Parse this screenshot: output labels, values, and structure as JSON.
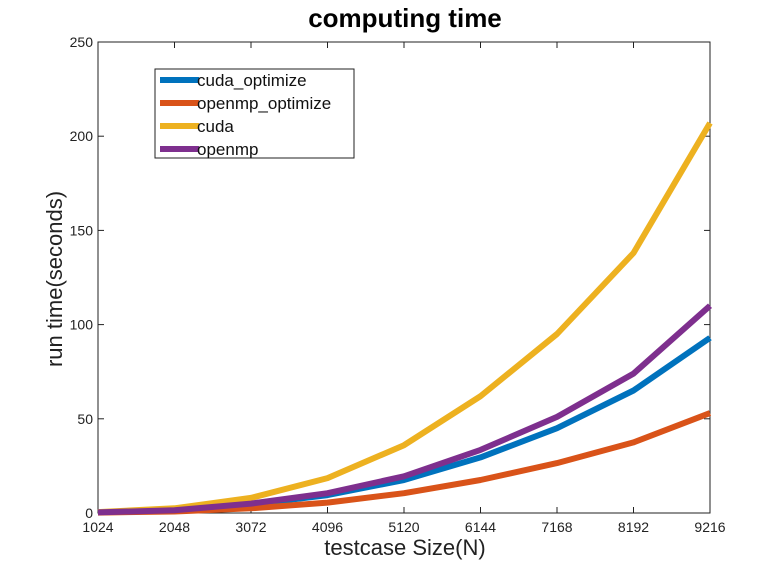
{
  "chart_data": {
    "type": "line",
    "title": "computing time",
    "xlabel": "testcase Size(N)",
    "ylabel": "run time(seconds)",
    "x": [
      1024,
      2048,
      3072,
      4096,
      5120,
      6144,
      7168,
      8192,
      9216
    ],
    "xlim": [
      1024,
      9216
    ],
    "ylim": [
      0,
      250
    ],
    "yticks": [
      0,
      50,
      100,
      150,
      200,
      250
    ],
    "grid": false,
    "legend_position": "top-left",
    "series": [
      {
        "name": "cuda_optimize",
        "color": "#0072BD",
        "values": [
          0.3,
          1.5,
          4.5,
          9.5,
          17.5,
          29.5,
          45,
          65,
          93
        ]
      },
      {
        "name": "openmp_optimize",
        "color": "#D95319",
        "values": [
          0.2,
          0.8,
          2.5,
          5.5,
          10.5,
          17.5,
          26.5,
          37.5,
          53
        ]
      },
      {
        "name": "cuda",
        "color": "#EDB120",
        "values": [
          0.5,
          2.5,
          8,
          18.5,
          36,
          62,
          95,
          138,
          207
        ]
      },
      {
        "name": "openmp",
        "color": "#7E2F8E",
        "values": [
          0.3,
          1.5,
          5,
          10.5,
          19.5,
          33.5,
          51,
          74,
          110
        ]
      }
    ]
  }
}
